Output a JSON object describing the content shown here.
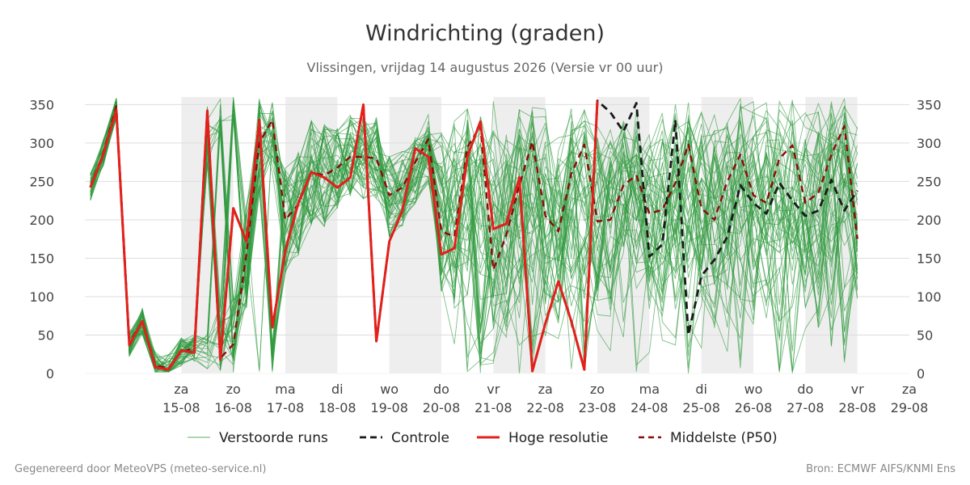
{
  "title": "Windrichting (graden)",
  "subtitle": "Vlissingen, vrijdag 14 augustus 2026 (Versie vr 00 uur)",
  "footer": {
    "left": "Gegenereerd door MeteoVPS (meteo-service.nl)",
    "right": "Bron: ECMWF AIFS/KNMI Ens"
  },
  "colors": {
    "ensemble": "#2e9a3e",
    "control": "#1a1a1a",
    "high_res": "#e3201b",
    "median": "#8b0a0a",
    "weekend_band": "#eeeeee",
    "grid": "#dddddd"
  },
  "chart_data": {
    "type": "line",
    "title": "Windrichting (graden)",
    "subtitle": "Vlissingen, vrijdag 14 augustus 2026 (Versie vr 00 uur)",
    "x_unit": "dagen vanaf vr 14-08 00 uur",
    "xlim": [
      0.0,
      15.0
    ],
    "ylim": [
      0,
      360
    ],
    "y_ticks": [
      0,
      50,
      100,
      150,
      200,
      250,
      300,
      350
    ],
    "grid": "horizontal",
    "legend_position": "bottom-center",
    "x_ticks": [
      {
        "x": 1,
        "day": "za",
        "date": "15-08"
      },
      {
        "x": 2,
        "day": "zo",
        "date": "16-08"
      },
      {
        "x": 3,
        "day": "ma",
        "date": "17-08"
      },
      {
        "x": 4,
        "day": "di",
        "date": "18-08"
      },
      {
        "x": 5,
        "day": "wo",
        "date": "19-08"
      },
      {
        "x": 6,
        "day": "do",
        "date": "20-08"
      },
      {
        "x": 7,
        "day": "vr",
        "date": "21-08"
      },
      {
        "x": 8,
        "day": "za",
        "date": "22-08"
      },
      {
        "x": 9,
        "day": "zo",
        "date": "23-08"
      },
      {
        "x": 10,
        "day": "ma",
        "date": "24-08"
      },
      {
        "x": 11,
        "day": "di",
        "date": "25-08"
      },
      {
        "x": 12,
        "day": "wo",
        "date": "26-08"
      },
      {
        "x": 13,
        "day": "do",
        "date": "27-08"
      },
      {
        "x": 14,
        "day": "vr",
        "date": "28-08"
      },
      {
        "x": 15,
        "day": "za",
        "date": "29-08"
      }
    ],
    "shaded_bands": [
      [
        1,
        2
      ],
      [
        3,
        4
      ],
      [
        5,
        6
      ],
      [
        7,
        8
      ],
      [
        9,
        10
      ],
      [
        11,
        12
      ],
      [
        13,
        14
      ]
    ],
    "legend": [
      {
        "key": "ensemble",
        "label": "Verstoorde runs",
        "style": "thin"
      },
      {
        "key": "control",
        "label": "Controle",
        "style": "dashed"
      },
      {
        "key": "high_res",
        "label": "Hoge resolutie",
        "style": "solid"
      },
      {
        "key": "median",
        "label": "Middelste (P50)",
        "style": "dashed"
      }
    ],
    "ensemble_members": 50,
    "series": [
      {
        "key": "high_res",
        "name": "Hoge resolutie",
        "points": [
          [
            -0.75,
            242
          ],
          [
            -0.5,
            285
          ],
          [
            -0.25,
            343
          ],
          [
            0.0,
            37
          ],
          [
            0.25,
            68
          ],
          [
            0.5,
            8
          ],
          [
            0.75,
            5
          ],
          [
            1.0,
            30
          ],
          [
            1.25,
            27
          ],
          [
            1.5,
            342
          ],
          [
            1.75,
            18
          ],
          [
            2.0,
            215
          ],
          [
            2.25,
            172
          ],
          [
            2.5,
            330
          ],
          [
            2.75,
            60
          ],
          [
            3.0,
            160
          ],
          [
            3.25,
            222
          ],
          [
            3.5,
            262
          ],
          [
            3.75,
            255
          ],
          [
            4.0,
            242
          ],
          [
            4.25,
            255
          ],
          [
            4.5,
            350
          ],
          [
            4.75,
            42
          ],
          [
            5.0,
            172
          ],
          [
            5.25,
            212
          ],
          [
            5.5,
            293
          ],
          [
            5.75,
            282
          ],
          [
            6.0,
            155
          ],
          [
            6.25,
            163
          ],
          [
            6.5,
            282
          ],
          [
            6.75,
            328
          ],
          [
            7.0,
            188
          ],
          [
            7.25,
            195
          ],
          [
            7.5,
            255
          ],
          [
            7.75,
            3
          ],
          [
            8.0,
            65
          ],
          [
            8.25,
            120
          ],
          [
            8.5,
            68
          ],
          [
            8.75,
            5
          ],
          [
            9.0,
            355
          ]
        ]
      },
      {
        "key": "control",
        "name": "Controle",
        "points": [
          [
            -0.75,
            242
          ],
          [
            -0.5,
            285
          ],
          [
            -0.25,
            343
          ],
          [
            0.0,
            37
          ],
          [
            0.25,
            68
          ],
          [
            0.5,
            8
          ],
          [
            0.75,
            5
          ],
          [
            1.0,
            30
          ],
          [
            1.25,
            27
          ],
          [
            1.5,
            342
          ],
          [
            1.75,
            18
          ],
          [
            2.0,
            215
          ],
          [
            2.25,
            172
          ],
          [
            2.5,
            330
          ],
          [
            2.75,
            60
          ],
          [
            3.0,
            160
          ],
          [
            3.25,
            222
          ],
          [
            3.5,
            262
          ],
          [
            3.75,
            255
          ],
          [
            4.0,
            242
          ],
          [
            4.25,
            255
          ],
          [
            4.5,
            350
          ],
          [
            4.75,
            42
          ],
          [
            5.0,
            172
          ],
          [
            5.25,
            212
          ],
          [
            5.5,
            293
          ],
          [
            5.75,
            282
          ],
          [
            6.0,
            155
          ],
          [
            6.25,
            163
          ],
          [
            6.5,
            282
          ],
          [
            6.75,
            328
          ],
          [
            7.0,
            188
          ],
          [
            7.25,
            195
          ],
          [
            7.5,
            255
          ],
          [
            7.75,
            3
          ],
          [
            8.0,
            65
          ],
          [
            8.25,
            120
          ],
          [
            8.5,
            68
          ],
          [
            8.75,
            5
          ],
          [
            9.0,
            355
          ],
          [
            9.25,
            340
          ],
          [
            9.5,
            315
          ],
          [
            9.75,
            352
          ],
          [
            10.0,
            152
          ],
          [
            10.25,
            168
          ],
          [
            10.5,
            330
          ],
          [
            10.75,
            50
          ],
          [
            11.0,
            127
          ],
          [
            11.25,
            148
          ],
          [
            11.5,
            178
          ],
          [
            11.75,
            245
          ],
          [
            12.0,
            222
          ],
          [
            12.25,
            208
          ],
          [
            12.5,
            248
          ],
          [
            12.75,
            225
          ],
          [
            13.0,
            205
          ],
          [
            13.25,
            212
          ],
          [
            13.5,
            252
          ],
          [
            13.75,
            212
          ],
          [
            14.0,
            238
          ]
        ]
      },
      {
        "key": "median",
        "name": "Middelste (P50)",
        "points": [
          [
            -0.75,
            243
          ],
          [
            -0.5,
            287
          ],
          [
            -0.25,
            348
          ],
          [
            0.0,
            40
          ],
          [
            0.25,
            68
          ],
          [
            0.5,
            10
          ],
          [
            0.75,
            7
          ],
          [
            1.0,
            28
          ],
          [
            1.25,
            33
          ],
          [
            1.5,
            342
          ],
          [
            1.75,
            20
          ],
          [
            2.0,
            38
          ],
          [
            2.25,
            155
          ],
          [
            2.5,
            300
          ],
          [
            2.75,
            330
          ],
          [
            3.0,
            200
          ],
          [
            3.25,
            220
          ],
          [
            3.5,
            262
          ],
          [
            3.75,
            258
          ],
          [
            4.0,
            268
          ],
          [
            4.25,
            282
          ],
          [
            4.5,
            282
          ],
          [
            4.75,
            280
          ],
          [
            5.0,
            232
          ],
          [
            5.25,
            242
          ],
          [
            5.5,
            275
          ],
          [
            5.75,
            305
          ],
          [
            6.0,
            185
          ],
          [
            6.25,
            178
          ],
          [
            6.5,
            295
          ],
          [
            6.75,
            322
          ],
          [
            7.0,
            135
          ],
          [
            7.25,
            180
          ],
          [
            7.5,
            245
          ],
          [
            7.75,
            302
          ],
          [
            8.0,
            205
          ],
          [
            8.25,
            185
          ],
          [
            8.5,
            260
          ],
          [
            8.75,
            298
          ],
          [
            9.0,
            198
          ],
          [
            9.25,
            200
          ],
          [
            9.5,
            245
          ],
          [
            9.75,
            258
          ],
          [
            10.0,
            208
          ],
          [
            10.25,
            213
          ],
          [
            10.5,
            248
          ],
          [
            10.75,
            298
          ],
          [
            11.0,
            215
          ],
          [
            11.25,
            200
          ],
          [
            11.5,
            250
          ],
          [
            11.75,
            285
          ],
          [
            12.0,
            232
          ],
          [
            12.25,
            222
          ],
          [
            12.5,
            280
          ],
          [
            12.75,
            297
          ],
          [
            13.0,
            222
          ],
          [
            13.25,
            235
          ],
          [
            13.5,
            285
          ],
          [
            13.75,
            322
          ],
          [
            14.0,
            175
          ]
        ]
      }
    ]
  }
}
